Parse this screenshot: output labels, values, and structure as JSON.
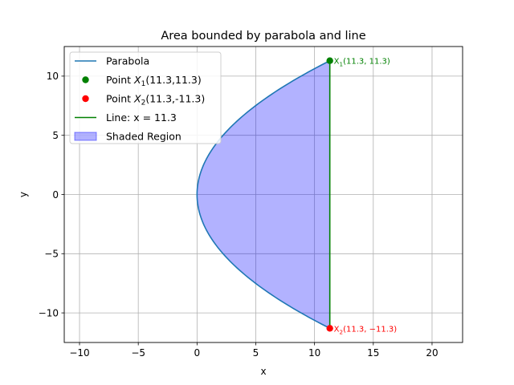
{
  "chart_data": {
    "type": "area",
    "title": "Area bounded by parabola and line",
    "xlabel": "x",
    "ylabel": "y",
    "xlim": [
      -11.3,
      22.6
    ],
    "ylim": [
      -12.5,
      12.5
    ],
    "xticks": [
      -10,
      -5,
      0,
      5,
      10,
      15,
      20
    ],
    "xtick_labels": [
      "−10",
      "−5",
      "0",
      "5",
      "10",
      "15",
      "20"
    ],
    "yticks": [
      -10,
      -5,
      0,
      5,
      10
    ],
    "ytick_labels": [
      "−10",
      "−5",
      "0",
      "5",
      "10"
    ],
    "grid": true,
    "legend_position": "top-left",
    "series": [
      {
        "name": "Parabola",
        "kind": "line",
        "equation": "x = y^2 / 11.3",
        "y_range": [
          -11.3,
          11.3
        ],
        "color": "#1f77b4"
      },
      {
        "name": "Point X1(11.3,11.3)",
        "kind": "point",
        "x": 11.3,
        "y": 11.3,
        "color": "#008000"
      },
      {
        "name": "Point X2(11.3,-11.3)",
        "kind": "point",
        "x": 11.3,
        "y": -11.3,
        "color": "#ff0000"
      },
      {
        "name": "Line: x = 11.3",
        "kind": "vline",
        "x": 11.3,
        "y_range": [
          -11.3,
          11.3
        ],
        "color": "#008000"
      },
      {
        "name": "Shaded Region",
        "kind": "fill",
        "between": "parabola and x = 11.3",
        "color": "#0000ff",
        "alpha": 0.3
      }
    ],
    "annotations": [
      {
        "id": "X1",
        "x": 11.3,
        "y": 11.3,
        "text": "X1(11.3, 11.3)",
        "color": "#008000"
      },
      {
        "id": "X2",
        "x": 11.3,
        "y": -11.3,
        "text": "X2(11.3, −11.3)",
        "color": "#ff0000"
      }
    ]
  }
}
